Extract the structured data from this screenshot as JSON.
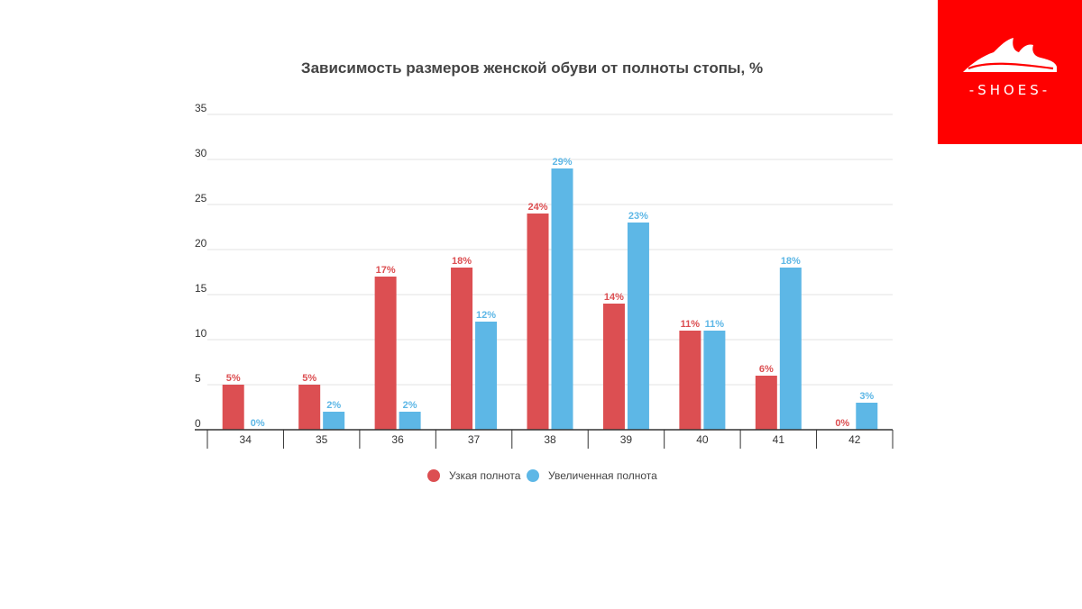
{
  "logo": {
    "text": "-SHOES-",
    "background": "#ff0000",
    "icon": "shoe-icon"
  },
  "chart_data": {
    "type": "bar",
    "title": "Зависимость размеров женской обуви от полноты стопы,  %",
    "xlabel": "",
    "ylabel": "",
    "categories": [
      "34",
      "35",
      "36",
      "37",
      "38",
      "39",
      "40",
      "41",
      "42"
    ],
    "ylim": [
      0,
      35
    ],
    "yticks": [
      0,
      5,
      10,
      15,
      20,
      25,
      30,
      35
    ],
    "grid": true,
    "legend_position": "bottom",
    "series": [
      {
        "name": "Узкая полнота",
        "color": "#dc4f52",
        "values": [
          5,
          5,
          17,
          18,
          24,
          14,
          11,
          6,
          0
        ],
        "labels": [
          "5%",
          "5%",
          "17%",
          "18%",
          "24%",
          "14%",
          "11%",
          "6%",
          "0%"
        ]
      },
      {
        "name": "Увеличенная полнота",
        "color": "#5db7e6",
        "values": [
          0,
          2,
          2,
          12,
          29,
          23,
          11,
          18,
          3
        ],
        "labels": [
          "0%",
          "2%",
          "2%",
          "12%",
          "29%",
          "23%",
          "11%",
          "18%",
          "3%"
        ]
      }
    ]
  }
}
